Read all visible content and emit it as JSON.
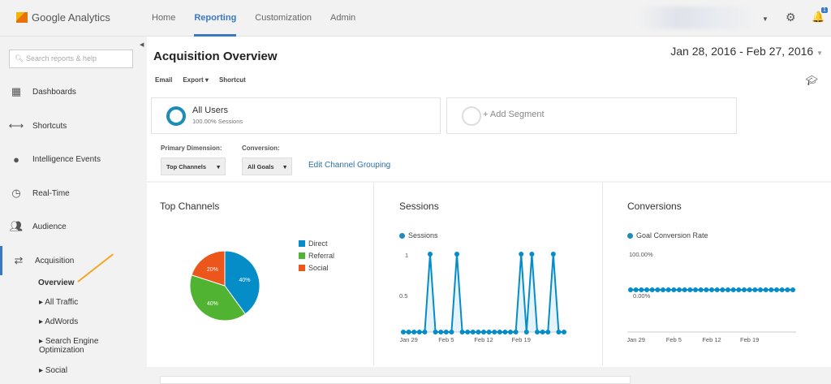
{
  "header": {
    "app_name": "Google Analytics",
    "nav": [
      "Home",
      "Reporting",
      "Customization",
      "Admin"
    ],
    "active_nav": "Reporting",
    "notification_count": "1"
  },
  "sidebar": {
    "search_placeholder": "Search reports & help",
    "items": [
      {
        "label": "Dashboards",
        "icon": "grid-icon"
      },
      {
        "label": "Shortcuts",
        "icon": "shortcut-arrows-icon"
      },
      {
        "label": "Intelligence Events",
        "icon": "bulb-icon"
      },
      {
        "label": "Real-Time",
        "icon": "clock-icon"
      },
      {
        "label": "Audience",
        "icon": "people-icon"
      },
      {
        "label": "Acquisition",
        "icon": "acquisition-arrows-icon"
      }
    ],
    "sub_items": [
      "Overview",
      "All Traffic",
      "AdWords",
      "Search Engine Optimization",
      "Social"
    ]
  },
  "page": {
    "title": "Acquisition Overview",
    "date_range": "Jan 28, 2016 - Feb 27, 2016",
    "toolbar": [
      "Email",
      "Export",
      "Shortcut"
    ],
    "segment": {
      "name": "All Users",
      "detail": "100.00% Sessions",
      "add": "+ Add Segment"
    },
    "primary_dimension_label": "Primary Dimension:",
    "primary_dimension": "Top Channels",
    "conversion_label": "Conversion:",
    "conversion": "All Goals",
    "edit_link": "Edit Channel Grouping"
  },
  "chart_data": [
    {
      "type": "pie",
      "title": "Top Channels",
      "categories": [
        "Direct",
        "Referral",
        "Social"
      ],
      "values": [
        40,
        40,
        20
      ],
      "labels": [
        "40%",
        "40%",
        "20%"
      ],
      "colors": [
        "#058dc7",
        "#50b432",
        "#ed561b"
      ],
      "legend": "right"
    },
    {
      "type": "line",
      "title": "Sessions",
      "series": [
        {
          "name": "Sessions",
          "values": [
            0,
            0,
            0,
            0,
            0,
            1,
            0,
            0,
            0,
            0,
            1,
            0,
            0,
            0,
            0,
            0,
            0,
            0,
            0,
            0,
            0,
            0,
            1,
            0,
            1,
            0,
            0,
            0,
            1,
            0,
            0
          ]
        }
      ],
      "x_start": "Jan 28",
      "xticks": [
        "Jan 29",
        "Feb 5",
        "Feb 12",
        "Feb 19"
      ],
      "yticks": [
        "0.5",
        "1"
      ],
      "ylim": [
        0,
        1
      ],
      "color": "#058dc7"
    },
    {
      "type": "line",
      "title": "Conversions",
      "series": [
        {
          "name": "Goal Conversion Rate",
          "values": [
            0,
            0,
            0,
            0,
            0,
            0,
            0,
            0,
            0,
            0,
            0,
            0,
            0,
            0,
            0,
            0,
            0,
            0,
            0,
            0,
            0,
            0,
            0,
            0,
            0,
            0,
            0,
            0,
            0,
            0,
            0
          ]
        }
      ],
      "xticks": [
        "Jan 29",
        "Feb 5",
        "Feb 12",
        "Feb 19"
      ],
      "yticks": [
        "0.00%",
        "100.00%"
      ],
      "ylim": [
        0,
        100
      ],
      "color": "#058dc7"
    }
  ]
}
